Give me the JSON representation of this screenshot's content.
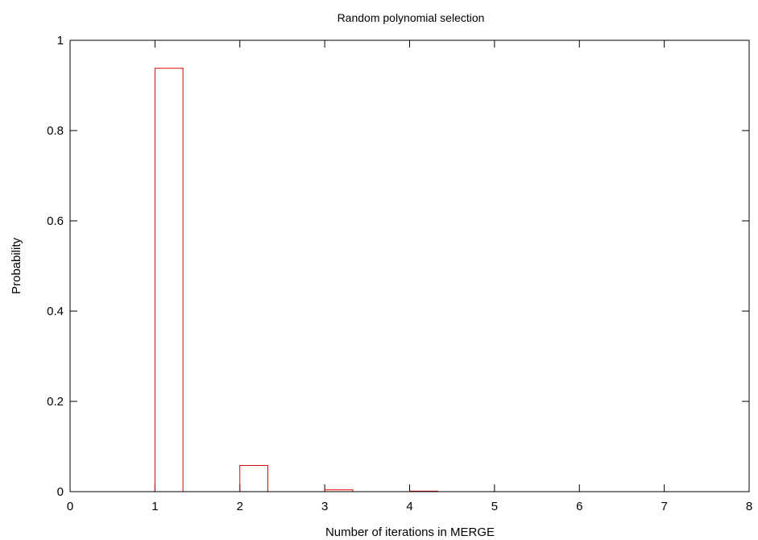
{
  "chart_data": {
    "type": "bar",
    "title": "Random polynomial selection",
    "xlabel": "Number of iterations in MERGE",
    "ylabel": "Probability",
    "xlim": [
      0,
      8
    ],
    "ylim": [
      0,
      1
    ],
    "xticks": [
      0,
      1,
      2,
      3,
      4,
      5,
      6,
      7,
      8
    ],
    "yticks": [
      0,
      0.2,
      0.4,
      0.6,
      0.8,
      1
    ],
    "ytick_labels": [
      "0",
      "0.2",
      "0.4",
      "0.6",
      "0.8",
      "1"
    ],
    "x": [
      1,
      2,
      3,
      4
    ],
    "values": [
      0.938,
      0.058,
      0.004,
      0.0005
    ],
    "bar_width_data": 0.33,
    "grid": false,
    "bar_color": "#e00000"
  }
}
